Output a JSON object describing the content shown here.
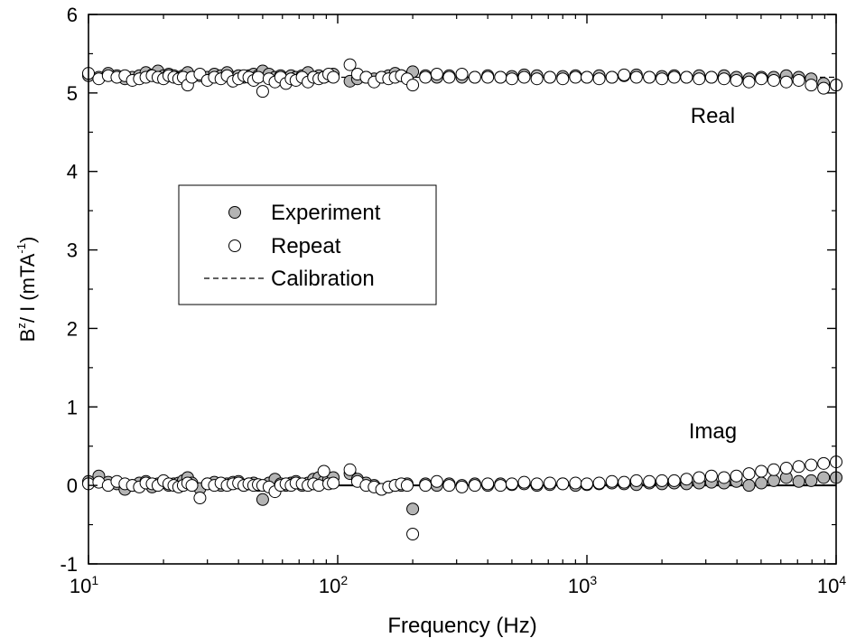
{
  "chart_data": {
    "type": "scatter",
    "xscale": "log",
    "xlim": [
      10,
      10000
    ],
    "ylim": [
      -1,
      6
    ],
    "xlabel": "Frequency (Hz)",
    "ylabel_parts": {
      "b": "B",
      "sup1": "z",
      "mid": "/ I (mTA",
      "sup2": "-1",
      "end": ")"
    },
    "x_ticks": [
      {
        "value": 10,
        "base": "10",
        "exp": "1"
      },
      {
        "value": 100,
        "base": "10",
        "exp": "2"
      },
      {
        "value": 1000,
        "base": "10",
        "exp": "3"
      },
      {
        "value": 10000,
        "base": "10",
        "exp": "4"
      }
    ],
    "y_ticks": [
      {
        "value": -1,
        "label": "-1"
      },
      {
        "value": 0,
        "label": "0"
      },
      {
        "value": 1,
        "label": "1"
      },
      {
        "value": 2,
        "label": "2"
      },
      {
        "value": 3,
        "label": "3"
      },
      {
        "value": 4,
        "label": "4"
      },
      {
        "value": 5,
        "label": "5"
      },
      {
        "value": 6,
        "label": "6"
      }
    ],
    "annotations": [
      {
        "text": "Real",
        "x": 3200,
        "y": 4.62
      },
      {
        "text": "Imag",
        "x": 3200,
        "y": 0.6
      }
    ],
    "legend": {
      "placement": "center-left",
      "entries": [
        {
          "name": "Experiment",
          "marker": "filled-circle"
        },
        {
          "name": "Repeat",
          "marker": "open-circle"
        },
        {
          "name": "Calibration",
          "marker": "dashed-line"
        }
      ]
    },
    "series": [
      {
        "name": "Experiment",
        "marker": "filled-circle",
        "color": "#b4b4b4",
        "real": {
          "x": [
            10,
            11,
            12,
            13,
            14,
            15,
            16,
            17,
            18,
            19,
            20,
            21,
            22,
            23,
            24,
            25,
            26,
            28,
            30,
            32,
            34,
            36,
            38,
            40,
            42,
            44,
            46,
            48,
            50,
            53,
            56,
            59,
            62,
            65,
            68,
            72,
            76,
            80,
            84,
            88,
            92,
            96,
            112,
            120,
            130,
            140,
            150,
            160,
            170,
            180,
            190,
            200,
            225,
            250,
            280,
            315,
            355,
            400,
            450,
            500,
            560,
            630,
            710,
            800,
            900,
            1000,
            1120,
            1260,
            1410,
            1580,
            1780,
            2000,
            2240,
            2510,
            2820,
            3160,
            3550,
            3980,
            4470,
            5010,
            5620,
            6310,
            7080,
            7940,
            8910,
            10000
          ],
          "y": [
            5.22,
            5.2,
            5.25,
            5.22,
            5.18,
            5.2,
            5.22,
            5.26,
            5.23,
            5.28,
            5.22,
            5.24,
            5.22,
            5.2,
            5.22,
            5.26,
            5.2,
            5.22,
            5.2,
            5.24,
            5.22,
            5.26,
            5.2,
            5.22,
            5.2,
            5.22,
            5.24,
            5.22,
            5.28,
            5.24,
            5.2,
            5.22,
            5.18,
            5.22,
            5.2,
            5.22,
            5.26,
            5.2,
            5.22,
            5.2,
            5.22,
            5.24,
            5.15,
            5.18,
            5.2,
            5.18,
            5.2,
            5.22,
            5.25,
            5.22,
            5.2,
            5.27,
            5.22,
            5.2,
            5.22,
            5.2,
            5.2,
            5.22,
            5.2,
            5.21,
            5.23,
            5.22,
            5.2,
            5.21,
            5.22,
            5.2,
            5.22,
            5.2,
            5.22,
            5.23,
            5.2,
            5.21,
            5.22,
            5.2,
            5.22,
            5.2,
            5.22,
            5.2,
            5.18,
            5.2,
            5.2,
            5.22,
            5.2,
            5.18,
            5.12,
            5.1
          ]
        },
        "imag": {
          "x": [
            10,
            11,
            12,
            13,
            14,
            15,
            16,
            17,
            18,
            19,
            20,
            21,
            22,
            23,
            24,
            25,
            26,
            28,
            30,
            32,
            34,
            36,
            38,
            40,
            42,
            44,
            46,
            48,
            50,
            53,
            56,
            59,
            62,
            65,
            68,
            72,
            76,
            80,
            84,
            88,
            92,
            96,
            112,
            120,
            130,
            140,
            150,
            160,
            170,
            180,
            190,
            200,
            225,
            250,
            280,
            315,
            355,
            400,
            450,
            500,
            560,
            630,
            710,
            800,
            900,
            1000,
            1120,
            1260,
            1410,
            1580,
            1780,
            2000,
            2240,
            2510,
            2820,
            3160,
            3550,
            3980,
            4470,
            5010,
            5620,
            6310,
            7080,
            7940,
            8910,
            10000
          ],
          "y": [
            0.05,
            0.12,
            0.04,
            0.02,
            -0.05,
            0.0,
            0.03,
            0.05,
            -0.02,
            0.02,
            0.04,
            0.0,
            0.02,
            0.03,
            0.06,
            0.1,
            0.03,
            -0.04,
            0.02,
            0.04,
            0.0,
            0.02,
            0.04,
            0.05,
            0.0,
            0.02,
            0.03,
            0.0,
            -0.18,
            0.03,
            0.08,
            0.02,
            0.0,
            0.03,
            0.05,
            0.0,
            0.03,
            0.08,
            0.1,
            0.05,
            0.08,
            0.1,
            0.15,
            0.08,
            0.03,
            0.0,
            -0.05,
            -0.02,
            0.0,
            0.0,
            0.02,
            -0.3,
            0.02,
            0.0,
            0.02,
            0.0,
            0.02,
            0.0,
            0.02,
            0.01,
            0.02,
            0.0,
            0.01,
            0.02,
            0.0,
            0.01,
            0.02,
            0.03,
            0.02,
            0.01,
            0.03,
            0.02,
            0.03,
            0.02,
            0.03,
            0.04,
            0.03,
            0.05,
            0.0,
            0.03,
            0.06,
            0.1,
            0.05,
            0.06,
            0.1,
            0.1
          ]
        }
      },
      {
        "name": "Repeat",
        "marker": "open-circle",
        "color": "#ffffff",
        "real": {
          "x": [
            10,
            11,
            12,
            13,
            14,
            15,
            16,
            17,
            18,
            19,
            20,
            21,
            22,
            23,
            24,
            25,
            26,
            28,
            30,
            32,
            34,
            36,
            38,
            40,
            42,
            44,
            46,
            48,
            50,
            53,
            56,
            59,
            62,
            65,
            68,
            72,
            76,
            80,
            84,
            88,
            92,
            96,
            112,
            120,
            130,
            140,
            150,
            160,
            170,
            180,
            190,
            200,
            225,
            250,
            280,
            315,
            355,
            400,
            450,
            500,
            560,
            630,
            710,
            800,
            900,
            1000,
            1120,
            1260,
            1410,
            1580,
            1780,
            2000,
            2240,
            2510,
            2820,
            3160,
            3550,
            3980,
            4470,
            5010,
            5620,
            6310,
            7080,
            7940,
            8910,
            10000
          ],
          "y": [
            5.25,
            5.18,
            5.22,
            5.2,
            5.22,
            5.16,
            5.18,
            5.2,
            5.22,
            5.2,
            5.18,
            5.22,
            5.2,
            5.18,
            5.2,
            5.1,
            5.2,
            5.24,
            5.16,
            5.2,
            5.18,
            5.22,
            5.15,
            5.18,
            5.22,
            5.2,
            5.16,
            5.2,
            5.02,
            5.18,
            5.14,
            5.2,
            5.12,
            5.18,
            5.16,
            5.2,
            5.14,
            5.2,
            5.18,
            5.2,
            5.24,
            5.2,
            5.36,
            5.24,
            5.2,
            5.14,
            5.2,
            5.18,
            5.2,
            5.22,
            5.18,
            5.1,
            5.2,
            5.24,
            5.2,
            5.24,
            5.2,
            5.2,
            5.2,
            5.18,
            5.2,
            5.18,
            5.2,
            5.18,
            5.2,
            5.2,
            5.18,
            5.2,
            5.23,
            5.2,
            5.2,
            5.18,
            5.2,
            5.2,
            5.18,
            5.2,
            5.18,
            5.16,
            5.14,
            5.18,
            5.16,
            5.14,
            5.16,
            5.1,
            5.06,
            5.1
          ]
        },
        "imag": {
          "x": [
            10,
            11,
            12,
            13,
            14,
            15,
            16,
            17,
            18,
            19,
            20,
            21,
            22,
            23,
            24,
            25,
            26,
            28,
            30,
            32,
            34,
            36,
            38,
            40,
            42,
            44,
            46,
            48,
            50,
            53,
            56,
            59,
            62,
            65,
            68,
            72,
            76,
            80,
            84,
            88,
            92,
            96,
            112,
            120,
            130,
            140,
            150,
            160,
            170,
            180,
            190,
            200,
            225,
            250,
            280,
            315,
            355,
            400,
            450,
            500,
            560,
            630,
            710,
            800,
            900,
            1000,
            1120,
            1260,
            1410,
            1580,
            1780,
            2000,
            2240,
            2510,
            2820,
            3160,
            3550,
            3980,
            4470,
            5010,
            5620,
            6310,
            7080,
            7940,
            8910,
            10000
          ],
          "y": [
            0.02,
            0.04,
            0.0,
            0.05,
            0.02,
            0.0,
            -0.02,
            0.03,
            0.02,
            0.0,
            0.06,
            0.02,
            0.0,
            -0.02,
            0.0,
            0.03,
            0.0,
            -0.16,
            0.02,
            0.0,
            0.03,
            0.0,
            0.02,
            0.03,
            0.0,
            0.02,
            0.0,
            0.01,
            0.0,
            -0.02,
            -0.08,
            0.0,
            0.02,
            0.0,
            0.03,
            0.02,
            0.0,
            0.02,
            0.0,
            0.18,
            0.02,
            0.03,
            0.2,
            0.05,
            0.0,
            -0.02,
            -0.05,
            -0.02,
            0.0,
            0.02,
            0.0,
            -0.62,
            0.0,
            0.05,
            0.0,
            -0.02,
            0.0,
            0.02,
            0.0,
            0.02,
            0.04,
            0.02,
            0.03,
            0.02,
            0.03,
            0.02,
            0.03,
            0.05,
            0.04,
            0.06,
            0.05,
            0.06,
            0.06,
            0.08,
            0.1,
            0.12,
            0.1,
            0.12,
            0.15,
            0.18,
            0.2,
            0.22,
            0.24,
            0.26,
            0.28,
            0.3
          ]
        }
      },
      {
        "name": "Calibration",
        "marker": "dashed-line",
        "color": "#000000",
        "real": {
          "x": [
            10,
            10000
          ],
          "y": [
            5.2,
            5.2
          ]
        },
        "imag": {
          "x": [
            10,
            10000
          ],
          "y": [
            0.0,
            0.0
          ]
        }
      }
    ]
  }
}
